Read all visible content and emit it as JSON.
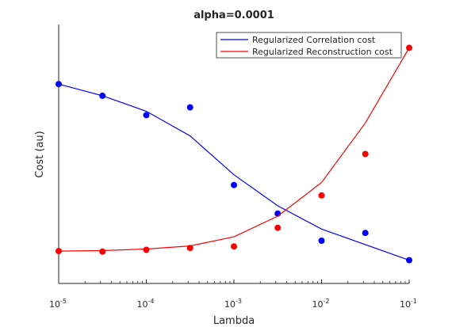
{
  "chart_data": {
    "type": "line",
    "title": "alpha=0.0001",
    "xlabel": "Lambda",
    "ylabel": "Cost (au)",
    "xscale": "log",
    "xlim": [
      1e-05,
      0.1
    ],
    "ylim": [
      0,
      1
    ],
    "y_ticks_shown": false,
    "grid": false,
    "legend_position": "top-right",
    "x_ticks": [
      {
        "base": "10",
        "exp": "-5",
        "value": 1e-05
      },
      {
        "base": "10",
        "exp": "-4",
        "value": 0.0001
      },
      {
        "base": "10",
        "exp": "-3",
        "value": 0.001
      },
      {
        "base": "10",
        "exp": "-2",
        "value": 0.01
      },
      {
        "base": "10",
        "exp": "-1",
        "value": 0.1
      }
    ],
    "x": [
      1e-05,
      3.16e-05,
      0.0001,
      0.000316,
      0.001,
      0.00316,
      0.01,
      0.0316,
      0.1
    ],
    "series": [
      {
        "name": "Regularized Correlation cost",
        "color": "#0000ff",
        "points": [
          0.77,
          0.725,
          0.65,
          0.68,
          0.38,
          0.27,
          0.165,
          0.195,
          0.09
        ],
        "line": [
          0.77,
          0.725,
          0.665,
          0.57,
          0.42,
          0.3,
          0.21,
          0.15,
          0.09
        ]
      },
      {
        "name": "Regularized Reconstruction cost",
        "color": "#ff0000",
        "points": [
          0.125,
          0.123,
          0.13,
          0.137,
          0.143,
          0.215,
          0.34,
          0.5,
          0.91
        ],
        "line": [
          0.125,
          0.127,
          0.133,
          0.145,
          0.18,
          0.26,
          0.39,
          0.62,
          0.91
        ]
      }
    ]
  }
}
